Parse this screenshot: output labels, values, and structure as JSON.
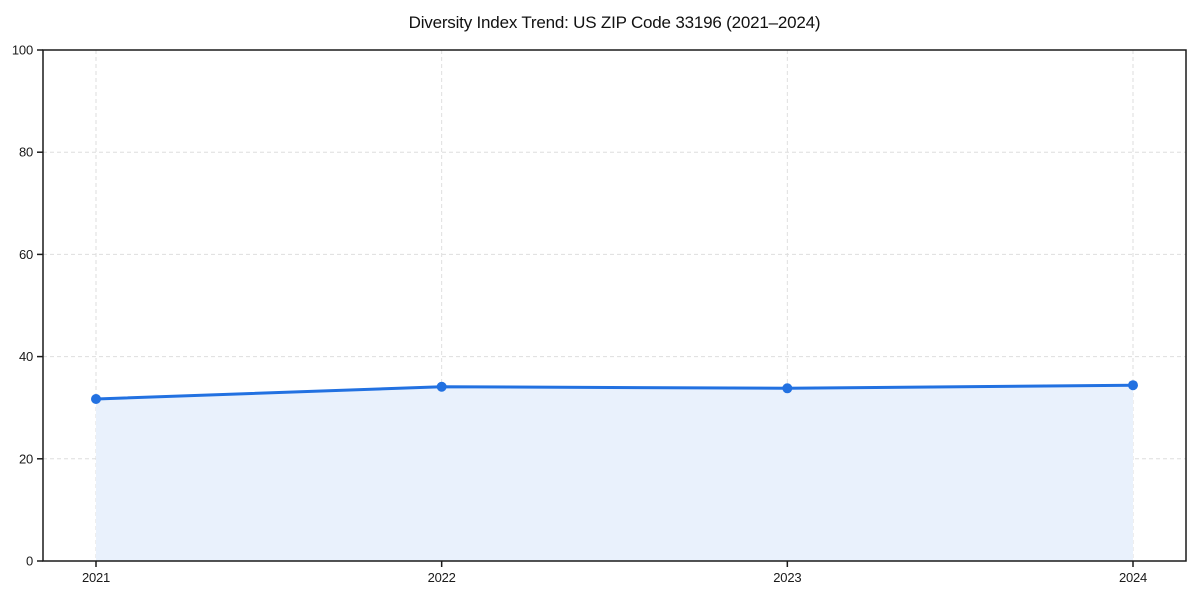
{
  "page": {
    "background": "#ffffff"
  },
  "chart_data": {
    "type": "area",
    "title": "Diversity Index Trend: US ZIP Code 33196 (2021–2024)",
    "categories": [
      "2021",
      "2022",
      "2023",
      "2024"
    ],
    "values": [
      31.7,
      34.1,
      33.8,
      34.4
    ],
    "xlabel": "",
    "ylabel": "",
    "ylim": [
      0,
      100
    ],
    "yticks": [
      0,
      20,
      40,
      60,
      80,
      100
    ],
    "grid": true,
    "grid_style": "dashed",
    "legend_position": "none",
    "marker": "circle",
    "colors": {
      "line": "#2271e1",
      "marker": "#2271e1",
      "area": "#e9f1fc",
      "grid": "#dedede",
      "spine": "#1a1a1a",
      "text": "#1a1a1a",
      "background": "#ffffff"
    }
  }
}
